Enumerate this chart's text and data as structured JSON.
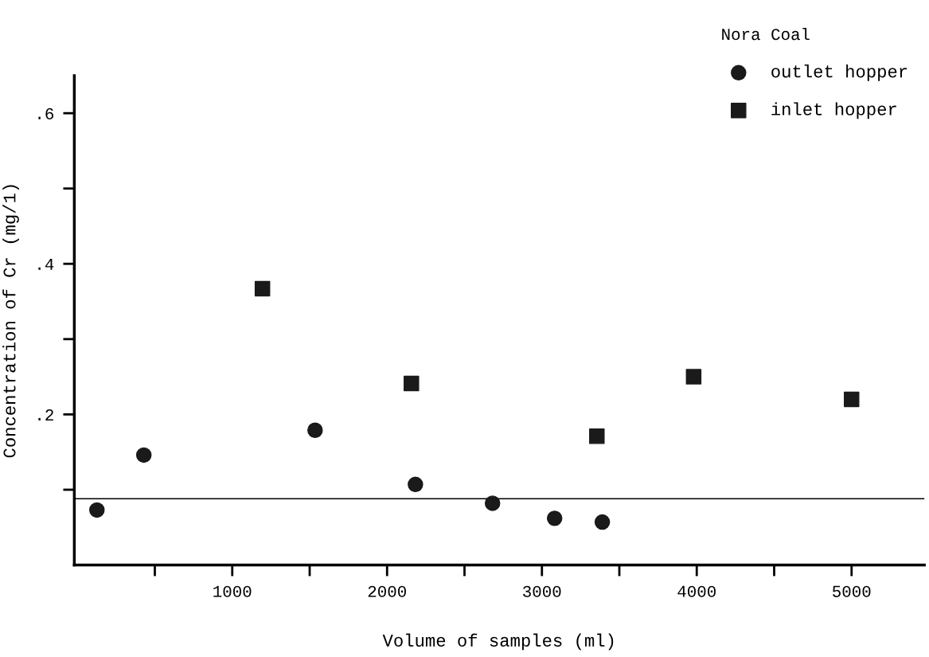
{
  "chart_data": {
    "type": "scatter",
    "xlabel": "Volume of samples (ml)",
    "ylabel": "Concentration of Cr (mg/1)",
    "legend_title": "Nora Coal",
    "legend": "top right",
    "grid": false,
    "xlim": [
      -20,
      5470
    ],
    "ylim": [
      0,
      0.65
    ],
    "xticks": [
      {
        "value": 500,
        "label": null
      },
      1000,
      {
        "value": 1500,
        "label": null
      },
      2000,
      {
        "value": 2500,
        "label": null
      },
      3000,
      {
        "value": 3500,
        "label": null
      },
      4000,
      {
        "value": 4500,
        "label": null
      },
      5000
    ],
    "yticks": [
      {
        "value": 0.1,
        "label": null
      },
      {
        "value": 0.2,
        "label": ".2"
      },
      {
        "value": 0.3,
        "label": null
      },
      {
        "value": 0.4,
        "label": ".4"
      },
      {
        "value": 0.5,
        "label": null
      },
      {
        "value": 0.6,
        "label": ".6"
      }
    ],
    "ref_lines": [
      {
        "axis": "y",
        "value": 0.088,
        "color": "#000000",
        "line_style": "solid"
      }
    ],
    "series": [
      {
        "name": "outlet hopper",
        "color": "#1a1a1a",
        "marker": "circle",
        "x": [
          126,
          429,
          1535,
          2183,
          2681,
          3082,
          3390
        ],
        "values": [
          0.073,
          0.146,
          0.179,
          0.107,
          0.082,
          0.062,
          0.057
        ]
      },
      {
        "name": "inlet hopper",
        "color": "#1a1a1a",
        "marker": "square",
        "x": [
          1195,
          2157,
          3355,
          3980,
          5000
        ],
        "values": [
          0.367,
          0.241,
          0.171,
          0.25,
          0.22
        ]
      }
    ]
  }
}
